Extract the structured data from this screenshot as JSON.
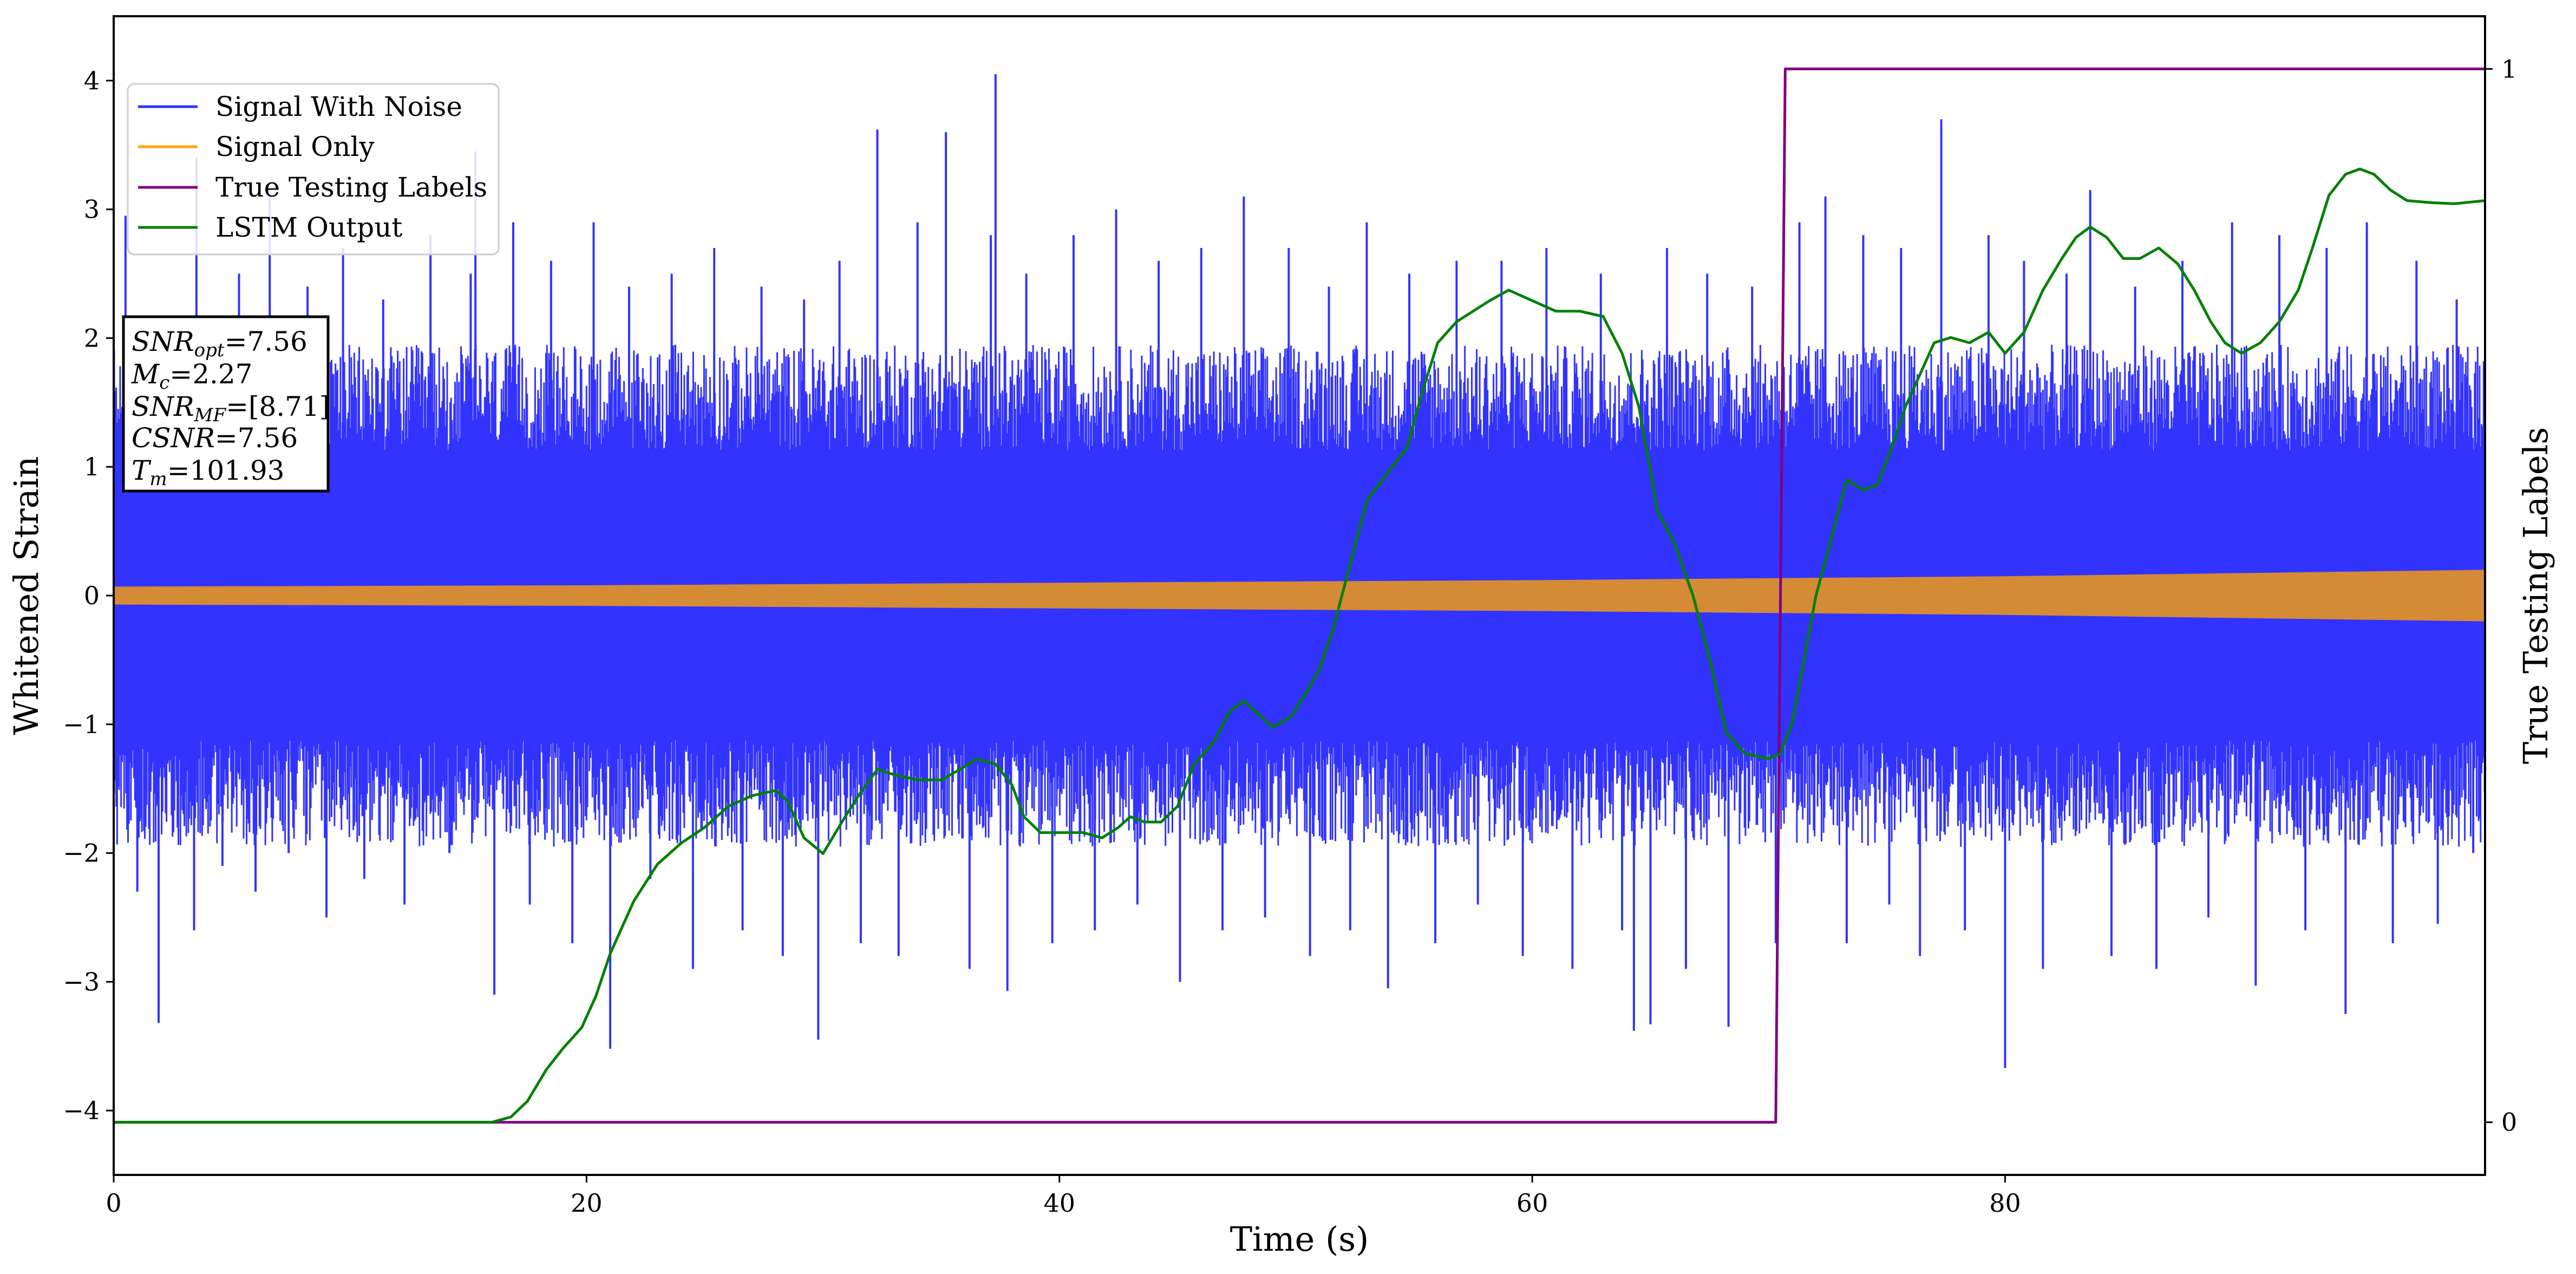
{
  "chart_data": {
    "type": "line",
    "xlabel": "Time (s)",
    "ylabel": "Whitened Strain",
    "ylabel_right": "True Testing Labels",
    "xlim": [
      0,
      100.3
    ],
    "ylim": [
      -4.5,
      4.5
    ],
    "ylim_right": [
      -0.05,
      1.05
    ],
    "x_ticks": [
      0,
      20,
      40,
      60,
      80
    ],
    "y_ticks": [
      -4,
      -3,
      -2,
      -1,
      0,
      1,
      2,
      3,
      4
    ],
    "y_ticks_right": [
      0,
      1
    ],
    "grid": false,
    "legend_position": "top-left",
    "legend": [
      "Signal With Noise",
      "Signal Only",
      "True Testing Labels",
      "LSTM Output"
    ],
    "colors": {
      "signal_with_noise": "#3333ff",
      "signal_only": "#ffa500",
      "signal_overlap": "#d58a35",
      "true_labels": "#800080",
      "lstm_output": "#008000"
    },
    "info_box": {
      "snr_opt": {
        "base": "SNR",
        "sub": "opt",
        "value": "=7.56"
      },
      "mc": {
        "base": "M",
        "sub": "c",
        "value": "=2.27"
      },
      "snr_mf": {
        "base": "SNR",
        "sub": "MF",
        "value": "=[8.71]"
      },
      "csnr": {
        "base": "CSNR",
        "sub": "",
        "value": "=7.56"
      },
      "tm": {
        "base": "T",
        "sub": "m",
        "value": "=101.93"
      }
    },
    "series": [
      {
        "name": "Signal With Noise",
        "axis": "left",
        "typical_band": [
          -1.5,
          1.5
        ],
        "spikes": [
          [
            0.5,
            2.95
          ],
          [
            1.0,
            -2.3
          ],
          [
            1.5,
            1.8
          ],
          [
            1.9,
            -3.32
          ],
          [
            2.6,
            2.0
          ],
          [
            3.4,
            -2.6
          ],
          [
            3.5,
            3.4
          ],
          [
            4.6,
            -2.1
          ],
          [
            5.3,
            2.5
          ],
          [
            6.0,
            -2.3
          ],
          [
            6.6,
            3.1
          ],
          [
            7.4,
            -2.0
          ],
          [
            8.2,
            2.4
          ],
          [
            9.0,
            -2.5
          ],
          [
            9.7,
            2.7
          ],
          [
            10.6,
            -2.2
          ],
          [
            11.4,
            2.3
          ],
          [
            12.3,
            -2.4
          ],
          [
            13.4,
            2.8
          ],
          [
            14.2,
            -2.0
          ],
          [
            15.1,
            2.5
          ],
          [
            15.3,
            3.45
          ],
          [
            16.1,
            -3.1
          ],
          [
            16.9,
            2.9
          ],
          [
            17.6,
            -2.4
          ],
          [
            18.5,
            2.6
          ],
          [
            19.4,
            -2.7
          ],
          [
            20.3,
            2.9
          ],
          [
            21.0,
            -3.52
          ],
          [
            21.8,
            2.4
          ],
          [
            22.7,
            -2.2
          ],
          [
            23.6,
            2.5
          ],
          [
            24.5,
            -2.9
          ],
          [
            25.4,
            2.7
          ],
          [
            26.6,
            -2.6
          ],
          [
            27.4,
            2.4
          ],
          [
            28.3,
            -2.8
          ],
          [
            29.2,
            2.3
          ],
          [
            29.8,
            -3.45
          ],
          [
            30.7,
            2.6
          ],
          [
            31.6,
            -2.7
          ],
          [
            32.3,
            3.62
          ],
          [
            33.2,
            -2.8
          ],
          [
            34.0,
            2.9
          ],
          [
            35.2,
            3.6
          ],
          [
            36.2,
            -2.9
          ],
          [
            37.1,
            2.8
          ],
          [
            37.3,
            4.05
          ],
          [
            37.8,
            -3.07
          ],
          [
            38.6,
            2.5
          ],
          [
            39.7,
            -2.7
          ],
          [
            40.6,
            2.8
          ],
          [
            41.5,
            -2.6
          ],
          [
            42.4,
            3.0
          ],
          [
            43.3,
            -2.4
          ],
          [
            44.2,
            2.6
          ],
          [
            45.1,
            -3.0
          ],
          [
            46.0,
            2.7
          ],
          [
            46.9,
            -2.6
          ],
          [
            47.8,
            3.1
          ],
          [
            48.7,
            -2.5
          ],
          [
            49.7,
            2.7
          ],
          [
            50.6,
            -2.8
          ],
          [
            51.4,
            2.4
          ],
          [
            52.3,
            -2.6
          ],
          [
            53.0,
            2.9
          ],
          [
            53.9,
            -3.05
          ],
          [
            54.8,
            2.5
          ],
          [
            55.9,
            -2.7
          ],
          [
            56.8,
            2.6
          ],
          [
            57.7,
            -2.4
          ],
          [
            58.7,
            2.6
          ],
          [
            59.6,
            -2.8
          ],
          [
            60.6,
            2.7
          ],
          [
            61.7,
            -2.9
          ],
          [
            62.9,
            2.5
          ],
          [
            63.8,
            -2.6
          ],
          [
            64.3,
            -3.38
          ],
          [
            65.0,
            -3.33
          ],
          [
            65.7,
            2.7
          ],
          [
            66.5,
            -2.9
          ],
          [
            67.4,
            2.5
          ],
          [
            68.3,
            -3.35
          ],
          [
            69.3,
            2.4
          ],
          [
            70.3,
            -2.7
          ],
          [
            71.3,
            2.9
          ],
          [
            72.4,
            3.1
          ],
          [
            73.3,
            -2.7
          ],
          [
            74.0,
            2.8
          ],
          [
            75.1,
            -2.4
          ],
          [
            75.6,
            2.7
          ],
          [
            76.4,
            -2.8
          ],
          [
            77.3,
            3.7
          ],
          [
            78.3,
            -2.6
          ],
          [
            79.3,
            2.8
          ],
          [
            80.0,
            -3.67
          ],
          [
            80.8,
            2.6
          ],
          [
            81.6,
            -2.9
          ],
          [
            82.6,
            2.5
          ],
          [
            83.6,
            3.15
          ],
          [
            84.5,
            -2.8
          ],
          [
            85.5,
            2.4
          ],
          [
            86.4,
            -2.9
          ],
          [
            87.5,
            2.6
          ],
          [
            88.6,
            -2.5
          ],
          [
            89.6,
            2.9
          ],
          [
            90.6,
            -3.03
          ],
          [
            91.6,
            2.8
          ],
          [
            92.7,
            -2.6
          ],
          [
            93.6,
            2.7
          ],
          [
            94.4,
            -3.25
          ],
          [
            95.3,
            2.9
          ],
          [
            96.4,
            -2.7
          ],
          [
            97.4,
            2.6
          ],
          [
            98.3,
            -2.55
          ],
          [
            99.1,
            2.3
          ],
          [
            99.8,
            -2.0
          ]
        ]
      },
      {
        "name": "Signal Only",
        "axis": "left",
        "envelope": [
          [
            0,
            0.07
          ],
          [
            20,
            0.08
          ],
          [
            40,
            0.1
          ],
          [
            60,
            0.12
          ],
          [
            80,
            0.15
          ],
          [
            100.3,
            0.2
          ]
        ]
      },
      {
        "name": "True Testing Labels",
        "axis": "right",
        "points": [
          [
            0,
            0
          ],
          [
            70.3,
            0
          ],
          [
            70.7,
            1
          ],
          [
            100.3,
            1
          ]
        ]
      },
      {
        "name": "LSTM Output",
        "axis": "right",
        "points": [
          [
            0,
            0.0
          ],
          [
            15.0,
            0.0
          ],
          [
            16.0,
            0.0
          ],
          [
            16.8,
            0.005
          ],
          [
            17.5,
            0.02
          ],
          [
            18.3,
            0.05
          ],
          [
            19.0,
            0.07
          ],
          [
            19.8,
            0.09
          ],
          [
            20.4,
            0.12
          ],
          [
            21.0,
            0.16
          ],
          [
            22.0,
            0.21
          ],
          [
            23.0,
            0.245
          ],
          [
            24.0,
            0.265
          ],
          [
            25.0,
            0.28
          ],
          [
            26.0,
            0.3
          ],
          [
            27.0,
            0.31
          ],
          [
            28.0,
            0.315
          ],
          [
            28.5,
            0.305
          ],
          [
            29.2,
            0.27
          ],
          [
            30.0,
            0.255
          ],
          [
            30.8,
            0.285
          ],
          [
            31.5,
            0.31
          ],
          [
            32.3,
            0.335
          ],
          [
            33.0,
            0.33
          ],
          [
            34.0,
            0.325
          ],
          [
            35.0,
            0.325
          ],
          [
            35.8,
            0.335
          ],
          [
            36.5,
            0.345
          ],
          [
            37.3,
            0.34
          ],
          [
            38.0,
            0.32
          ],
          [
            38.5,
            0.29
          ],
          [
            39.2,
            0.275
          ],
          [
            40.0,
            0.275
          ],
          [
            41.0,
            0.275
          ],
          [
            41.8,
            0.27
          ],
          [
            42.5,
            0.28
          ],
          [
            43.0,
            0.29
          ],
          [
            43.6,
            0.285
          ],
          [
            44.3,
            0.285
          ],
          [
            45.0,
            0.3
          ],
          [
            45.7,
            0.34
          ],
          [
            46.5,
            0.36
          ],
          [
            47.2,
            0.39
          ],
          [
            47.8,
            0.4
          ],
          [
            48.3,
            0.39
          ],
          [
            49.0,
            0.375
          ],
          [
            49.8,
            0.385
          ],
          [
            50.5,
            0.41
          ],
          [
            51.0,
            0.43
          ],
          [
            51.6,
            0.47
          ],
          [
            52.3,
            0.53
          ],
          [
            53.0,
            0.59
          ],
          [
            54.0,
            0.62
          ],
          [
            54.7,
            0.64
          ],
          [
            55.3,
            0.69
          ],
          [
            56.0,
            0.74
          ],
          [
            56.8,
            0.76
          ],
          [
            57.5,
            0.77
          ],
          [
            58.2,
            0.78
          ],
          [
            59.0,
            0.79
          ],
          [
            60.0,
            0.78
          ],
          [
            61.0,
            0.77
          ],
          [
            62.0,
            0.77
          ],
          [
            63.0,
            0.765
          ],
          [
            63.8,
            0.73
          ],
          [
            64.5,
            0.68
          ],
          [
            65.3,
            0.58
          ],
          [
            66.0,
            0.55
          ],
          [
            66.8,
            0.5
          ],
          [
            67.5,
            0.44
          ],
          [
            68.2,
            0.37
          ],
          [
            69.0,
            0.35
          ],
          [
            70.0,
            0.345
          ],
          [
            70.5,
            0.35
          ],
          [
            71.0,
            0.38
          ],
          [
            71.5,
            0.44
          ],
          [
            72.0,
            0.5
          ],
          [
            72.6,
            0.55
          ],
          [
            73.3,
            0.61
          ],
          [
            74.0,
            0.6
          ],
          [
            74.6,
            0.605
          ],
          [
            75.2,
            0.64
          ],
          [
            75.8,
            0.68
          ],
          [
            76.4,
            0.71
          ],
          [
            77.0,
            0.74
          ],
          [
            77.7,
            0.745
          ],
          [
            78.5,
            0.74
          ],
          [
            79.3,
            0.75
          ],
          [
            80.0,
            0.73
          ],
          [
            80.8,
            0.75
          ],
          [
            81.6,
            0.79
          ],
          [
            82.4,
            0.82
          ],
          [
            83.0,
            0.84
          ],
          [
            83.6,
            0.85
          ],
          [
            84.3,
            0.84
          ],
          [
            85.0,
            0.82
          ],
          [
            85.7,
            0.82
          ],
          [
            86.5,
            0.83
          ],
          [
            87.3,
            0.815
          ],
          [
            88.0,
            0.79
          ],
          [
            88.7,
            0.76
          ],
          [
            89.3,
            0.74
          ],
          [
            90.0,
            0.73
          ],
          [
            90.8,
            0.74
          ],
          [
            91.6,
            0.76
          ],
          [
            92.4,
            0.79
          ],
          [
            93.0,
            0.83
          ],
          [
            93.7,
            0.88
          ],
          [
            94.4,
            0.9
          ],
          [
            95.0,
            0.905
          ],
          [
            95.6,
            0.9
          ],
          [
            96.3,
            0.885
          ],
          [
            97.0,
            0.875
          ],
          [
            98.0,
            0.873
          ],
          [
            99.0,
            0.872
          ],
          [
            100.3,
            0.875
          ]
        ]
      }
    ]
  }
}
